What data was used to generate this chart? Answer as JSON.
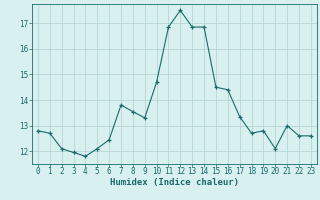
{
  "x": [
    0,
    1,
    2,
    3,
    4,
    5,
    6,
    7,
    8,
    9,
    10,
    11,
    12,
    13,
    14,
    15,
    16,
    17,
    18,
    19,
    20,
    21,
    22,
    23
  ],
  "y": [
    12.8,
    12.7,
    12.1,
    11.95,
    11.8,
    12.1,
    12.45,
    13.8,
    13.55,
    13.3,
    14.7,
    16.85,
    17.5,
    16.85,
    16.85,
    14.5,
    14.4,
    13.35,
    12.7,
    12.8,
    12.1,
    13.0,
    12.6,
    12.6
  ],
  "line_color": "#1a6b6b",
  "marker": "+",
  "marker_color": "#1a6b6b",
  "bg_color": "#d8f0f0",
  "grid_color": "#b0cece",
  "xlabel": "Humidex (Indice chaleur)",
  "xlim": [
    -0.5,
    23.5
  ],
  "ylim": [
    11.5,
    17.75
  ],
  "yticks": [
    12,
    13,
    14,
    15,
    16,
    17
  ],
  "xticks": [
    0,
    1,
    2,
    3,
    4,
    5,
    6,
    7,
    8,
    9,
    10,
    11,
    12,
    13,
    14,
    15,
    16,
    17,
    18,
    19,
    20,
    21,
    22,
    23
  ],
  "tick_color": "#1a6b6b",
  "axis_color": "#1a6b6b",
  "label_color": "#1a6b6b",
  "font_size_xlabel": 6.5,
  "font_size_ticks": 5.5
}
